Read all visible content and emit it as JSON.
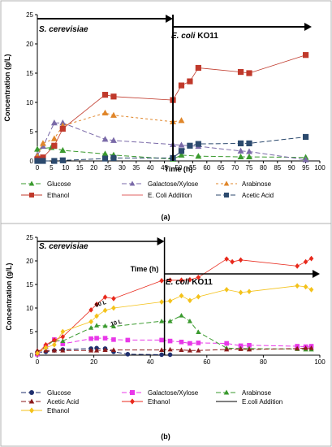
{
  "chart_data": [
    {
      "type": "line",
      "panel_label": "(a)",
      "xlabel": "Time (h)",
      "ylabel": "Concentration  (g/L)",
      "xlim": [
        0,
        100
      ],
      "ylim": [
        0,
        25
      ],
      "xticks": [
        0,
        5,
        10,
        15,
        20,
        25,
        30,
        35,
        40,
        45,
        50,
        55,
        60,
        65,
        70,
        75,
        80,
        85,
        90,
        95,
        100
      ],
      "yticks": [
        0,
        5,
        10,
        15,
        20,
        25
      ],
      "addition_time": 48,
      "phase_labels": {
        "left": "S. cerevisiae",
        "right_prefix": "E. coli",
        "right_suffix": " KO11"
      },
      "legend": [
        "Glucose",
        "Galactose/Xylose",
        "Arabinose",
        "Ethanol",
        "E. Coli Addition",
        "Acetic Acid"
      ],
      "series": [
        {
          "name": "Glucose",
          "color": "#3a9a2e",
          "marker": "triangle",
          "dash": "6,3",
          "x": [
            0,
            5,
            9,
            24,
            27,
            48,
            51,
            57,
            72,
            75,
            95
          ],
          "y": [
            2.0,
            2.3,
            1.8,
            1.2,
            1.0,
            0.3,
            1.0,
            0.8,
            0.7,
            0.7,
            0.6
          ]
        },
        {
          "name": "Galactose/Xylose",
          "color": "#7a6aa8",
          "marker": "triangle",
          "dash": "6,3",
          "x": [
            0,
            2,
            6,
            9,
            24,
            27,
            48,
            51,
            57,
            72,
            75,
            95
          ],
          "y": [
            1.0,
            2.5,
            6.5,
            6.5,
            3.7,
            3.5,
            2.8,
            2.7,
            2.5,
            1.7,
            1.6,
            0.2
          ]
        },
        {
          "name": "Arabinose",
          "color": "#e0862a",
          "marker": "triangle",
          "dash": "3,3",
          "x": [
            0,
            2,
            6,
            9,
            24,
            27,
            48,
            51
          ],
          "y": [
            0.8,
            3.0,
            3.8,
            6.0,
            8.2,
            7.8,
            6.7,
            6.9
          ]
        },
        {
          "name": "Ethanol",
          "color": "#c0392b",
          "marker": "square",
          "dash": "",
          "x": [
            0,
            2,
            6,
            9,
            24,
            27,
            48,
            51,
            54,
            57,
            72,
            75,
            95
          ],
          "y": [
            0.3,
            0.6,
            2.6,
            5.5,
            11.3,
            11.0,
            10.4,
            12.9,
            13.6,
            15.9,
            15.2,
            15.0,
            18.1
          ]
        },
        {
          "name": "Acetic Acid",
          "color": "#2c4a6e",
          "marker": "square",
          "dash": "6,3",
          "x": [
            0,
            2,
            6,
            9,
            24,
            27,
            48,
            51,
            54,
            57,
            72,
            75,
            95
          ],
          "y": [
            0.0,
            0.0,
            0.0,
            0.1,
            0.4,
            0.5,
            0.5,
            1.7,
            2.6,
            2.9,
            3.0,
            3.0,
            4.1
          ]
        }
      ]
    },
    {
      "type": "line",
      "panel_label": "(b)",
      "xlabel": "Time (h)",
      "ylabel": "Concentration (g/L)",
      "xlim": [
        0,
        100
      ],
      "ylim": [
        0,
        25
      ],
      "xticks": [
        0,
        20,
        40,
        60,
        80,
        100
      ],
      "yticks": [
        0,
        5,
        10,
        15,
        20,
        25
      ],
      "addition_time": 45,
      "phase_labels": {
        "left": "S. cerevisiae",
        "right_prefix": "E. coli",
        "right_suffix": " KO11"
      },
      "annotations": [
        "60 L",
        "10 L"
      ],
      "legend": [
        "Glucose",
        "Galactose/Xylose",
        "Arabinose",
        "Acetic Acid",
        "Ethanol",
        "E.coli Addition",
        "Ethanol"
      ],
      "series": [
        {
          "name": "Glucose",
          "color": "#1f2f6e",
          "marker": "circle",
          "dash": "6,3",
          "x": [
            0,
            3,
            6,
            9,
            19,
            21,
            24,
            27,
            32,
            44,
            47
          ],
          "y": [
            0.6,
            0.7,
            1.0,
            1.2,
            1.4,
            1.5,
            1.4,
            0.7,
            0.2,
            0.1,
            0.1
          ]
        },
        {
          "name": "Galactose/Xylose",
          "color": "#e838e8",
          "marker": "square",
          "dash": "6,3",
          "x": [
            0,
            3,
            6,
            9,
            19,
            21,
            24,
            27,
            32,
            44,
            47,
            51,
            54,
            57,
            67,
            72,
            75,
            92,
            95,
            97
          ],
          "y": [
            0.2,
            1.8,
            3.3,
            2.4,
            3.5,
            3.6,
            3.6,
            3.3,
            3.2,
            3.2,
            3.0,
            2.8,
            2.5,
            2.6,
            2.5,
            2.0,
            2.1,
            1.9,
            1.8,
            1.9
          ]
        },
        {
          "name": "Arabinose",
          "color": "#3a9a2e",
          "marker": "triangle",
          "dash": "6,3",
          "x": [
            0,
            3,
            6,
            9,
            19,
            21,
            24,
            27,
            44,
            47,
            51,
            54,
            57,
            67,
            72,
            75,
            92,
            95,
            97
          ],
          "y": [
            0.5,
            1.8,
            3.2,
            3.0,
            5.8,
            6.3,
            6.2,
            6.1,
            7.2,
            7.2,
            8.4,
            7.2,
            4.9,
            1.5,
            1.4,
            1.4,
            1.3,
            1.2,
            1.2
          ]
        },
        {
          "name": "Acetic Acid",
          "color": "#8b1a1a",
          "marker": "triangle",
          "dash": "6,3",
          "x": [
            0,
            3,
            6,
            9,
            19,
            21,
            24,
            27,
            44,
            47,
            51,
            54,
            57,
            67,
            72,
            75,
            92,
            95,
            97
          ],
          "y": [
            1.0,
            1.0,
            1.0,
            1.0,
            1.0,
            1.0,
            1.1,
            1.1,
            1.1,
            1.2,
            1.1,
            1.0,
            1.0,
            1.2,
            1.3,
            1.2,
            1.4,
            1.5,
            1.5
          ]
        },
        {
          "name": "Ethanol",
          "color": "#e8291c",
          "marker": "diamond",
          "dash": "",
          "x": [
            0,
            3,
            6,
            9,
            19,
            21,
            24,
            27,
            44,
            47,
            51,
            54,
            57,
            67,
            69,
            72,
            92,
            95,
            97
          ],
          "y": [
            0.3,
            2.2,
            3.2,
            3.9,
            9.6,
            10.8,
            12.3,
            12.0,
            15.8,
            15.9,
            15.9,
            16.0,
            16.5,
            20.4,
            19.8,
            20.2,
            18.9,
            19.8,
            20.5
          ]
        },
        {
          "name": "Ethanol",
          "color": "#f4c21a",
          "marker": "diamond",
          "dash": "",
          "x": [
            0,
            3,
            6,
            9,
            19,
            21,
            24,
            27,
            44,
            47,
            51,
            54,
            57,
            67,
            72,
            75,
            92,
            95,
            97
          ],
          "y": [
            0.4,
            1.6,
            2.2,
            5.0,
            7.1,
            8.3,
            9.5,
            10.0,
            11.3,
            11.5,
            12.6,
            11.6,
            12.4,
            13.9,
            13.3,
            13.5,
            14.7,
            14.5,
            13.9
          ]
        }
      ]
    }
  ]
}
